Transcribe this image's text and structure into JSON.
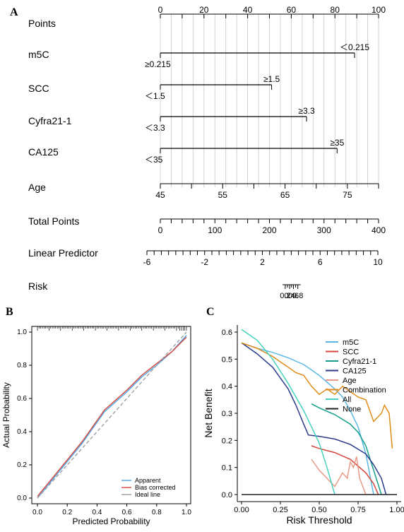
{
  "panels": {
    "a": "A",
    "b": "B",
    "c": "C"
  },
  "chart_data": [
    {
      "type": "nomogram",
      "rows": [
        {
          "label": "Points",
          "kind": "scale",
          "range": [
            0,
            100
          ],
          "ticks": [
            0,
            20,
            40,
            60,
            80,
            100
          ],
          "minor_step": 10
        },
        {
          "label": "m5C",
          "kind": "categorical",
          "levels": [
            {
              "text": "≥0.215",
              "points": 0
            },
            {
              "text": "＜0.215",
              "points": 89
            }
          ]
        },
        {
          "label": "SCC",
          "kind": "categorical",
          "levels": [
            {
              "text": "＜1.5",
              "points": 0
            },
            {
              "text": "≥1.5",
              "points": 51
            }
          ]
        },
        {
          "label": "Cyfra21-1",
          "kind": "categorical",
          "levels": [
            {
              "text": "＜3.3",
              "points": 0
            },
            {
              "text": "≥3.3",
              "points": 67
            }
          ]
        },
        {
          "label": "CA125",
          "kind": "categorical",
          "levels": [
            {
              "text": "＜35",
              "points": 0
            },
            {
              "text": "≥35",
              "points": 81
            }
          ]
        },
        {
          "label": "Age",
          "kind": "continuous",
          "range": [
            45,
            80
          ],
          "ticks": [
            45,
            55,
            65,
            75
          ],
          "minor_step": 5
        },
        {
          "label": "Total Points",
          "kind": "scale",
          "range": [
            0,
            400
          ],
          "ticks": [
            0,
            100,
            200,
            300,
            400
          ],
          "minor_step": 20
        },
        {
          "label": "Linear Predictor",
          "kind": "scale",
          "range": [
            -6,
            10
          ],
          "ticks": [
            -6,
            -2,
            2,
            6,
            10
          ],
          "minor_step": 1
        },
        {
          "label": "Risk",
          "kind": "risk",
          "tick_labels": [
            "0.2",
            "0.4",
            "0.6",
            "0.8"
          ],
          "tick_points_total": [
            229,
            237,
            244,
            252
          ]
        }
      ]
    },
    {
      "type": "line",
      "xlabel": "Predicted Probability",
      "ylabel": "Actual Probability",
      "xlim": [
        0,
        1
      ],
      "ylim": [
        0,
        1
      ],
      "x_ticks": [
        "0.0",
        "0.2",
        "0.4",
        "0.6",
        "0.8",
        "1.0"
      ],
      "y_ticks": [
        "0.0",
        "0.2",
        "0.4",
        "0.6",
        "0.8",
        "1.0"
      ],
      "legend_position": "bottom-right",
      "series": [
        {
          "name": "Apparent",
          "color": "#4da6e8",
          "dash": "solid",
          "x": [
            0.0,
            0.1,
            0.2,
            0.3,
            0.45,
            0.6,
            0.7,
            0.8,
            0.9,
            1.0
          ],
          "y": [
            0.0,
            0.11,
            0.22,
            0.33,
            0.52,
            0.64,
            0.73,
            0.8,
            0.88,
            0.98
          ]
        },
        {
          "name": "Bias corrected",
          "color": "#d6463a",
          "dash": "solid",
          "x": [
            0.0,
            0.1,
            0.2,
            0.3,
            0.45,
            0.6,
            0.7,
            0.8,
            0.9,
            1.0
          ],
          "y": [
            0.01,
            0.12,
            0.23,
            0.34,
            0.53,
            0.65,
            0.74,
            0.81,
            0.88,
            0.97
          ]
        },
        {
          "name": "Ideal line",
          "color": "#9aa0a6",
          "dash": "dashed",
          "x": [
            0.0,
            1.0
          ],
          "y": [
            0.0,
            1.0
          ]
        }
      ],
      "rug_color": "#000000"
    },
    {
      "type": "line",
      "xlabel": "Risk Threshold",
      "ylabel": "Net Benefit",
      "xlim": [
        0,
        1
      ],
      "ylim": [
        0,
        0.6
      ],
      "x_ticks": [
        "0.00",
        "0.25",
        "0.50",
        "0.75",
        "1.00"
      ],
      "y_ticks": [
        "0.0",
        "0.1",
        "0.2",
        "0.3",
        "0.4",
        "0.5",
        "0.6"
      ],
      "legend_position": "top-right",
      "series": [
        {
          "name": "m5C",
          "color": "#5bb8e6",
          "x": [
            0,
            0.1,
            0.2,
            0.3,
            0.4,
            0.5,
            0.6,
            0.65,
            0.7,
            0.75,
            0.8,
            0.85
          ],
          "y": [
            0.56,
            0.54,
            0.525,
            0.505,
            0.48,
            0.44,
            0.39,
            0.36,
            0.31,
            0.25,
            0.15,
            0.0
          ]
        },
        {
          "name": "SCC",
          "color": "#d6463a",
          "x": [
            0.45,
            0.5,
            0.6,
            0.7,
            0.8,
            0.85,
            0.88
          ],
          "y": [
            0.18,
            0.17,
            0.155,
            0.13,
            0.08,
            0.04,
            0.0
          ]
        },
        {
          "name": "Cyfra21-1",
          "color": "#159e8a",
          "x": [
            0.45,
            0.5,
            0.6,
            0.7,
            0.75,
            0.8,
            0.85,
            0.9
          ],
          "y": [
            0.335,
            0.32,
            0.295,
            0.26,
            0.23,
            0.18,
            0.09,
            0.0
          ]
        },
        {
          "name": "CA125",
          "color": "#2c3a8c",
          "x": [
            0,
            0.1,
            0.2,
            0.3,
            0.35,
            0.4,
            0.43,
            0.5,
            0.6,
            0.7,
            0.8,
            0.85,
            0.9,
            0.93
          ],
          "y": [
            0.56,
            0.52,
            0.47,
            0.39,
            0.33,
            0.26,
            0.22,
            0.215,
            0.205,
            0.185,
            0.15,
            0.11,
            0.06,
            0.0
          ]
        },
        {
          "name": "Age",
          "color": "#e89a86",
          "x": [
            0.45,
            0.5,
            0.55,
            0.6,
            0.65,
            0.68,
            0.7,
            0.72,
            0.74,
            0.76,
            0.78,
            0.8
          ],
          "y": [
            0.13,
            0.09,
            0.06,
            0.03,
            0.08,
            0.06,
            0.12,
            0.1,
            0.14,
            0.06,
            0.03,
            0.0
          ]
        },
        {
          "name": "Combination",
          "color": "#e08c1a",
          "x": [
            0,
            0.1,
            0.2,
            0.25,
            0.3,
            0.35,
            0.4,
            0.45,
            0.5,
            0.55,
            0.6,
            0.65,
            0.7,
            0.75,
            0.8,
            0.85,
            0.9,
            0.92,
            0.95,
            0.97
          ],
          "y": [
            0.56,
            0.54,
            0.51,
            0.49,
            0.47,
            0.45,
            0.44,
            0.4,
            0.37,
            0.39,
            0.37,
            0.4,
            0.38,
            0.36,
            0.35,
            0.27,
            0.3,
            0.33,
            0.3,
            0.17
          ]
        },
        {
          "name": "All",
          "color": "#45d1be",
          "x": [
            0,
            0.1,
            0.2,
            0.3,
            0.4,
            0.5,
            0.55,
            0.6
          ],
          "y": [
            0.61,
            0.57,
            0.5,
            0.41,
            0.31,
            0.19,
            0.1,
            0.0
          ]
        },
        {
          "name": "None",
          "color": "#222222",
          "x": [
            0,
            1.0
          ],
          "y": [
            0,
            0
          ]
        }
      ]
    }
  ]
}
